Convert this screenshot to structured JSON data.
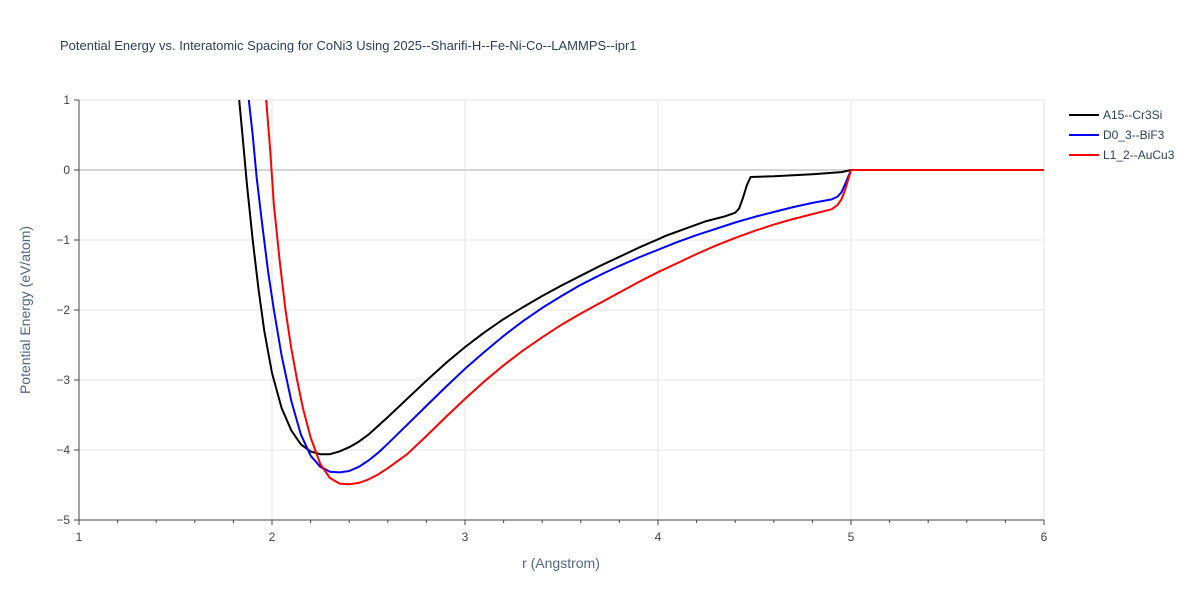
{
  "chart_data": {
    "type": "line",
    "title": "Potential Energy vs. Interatomic Spacing for CoNi3 Using 2025--Sharifi-H--Fe-Ni-Co--LAMMPS--ipr1",
    "xlabel": "r (Angstrom)",
    "ylabel": "Potential Energy (eV/atom)",
    "xlim": [
      1,
      6
    ],
    "ylim": [
      -5,
      1
    ],
    "xticks": [
      1,
      2,
      3,
      4,
      5,
      6
    ],
    "yticks": [
      1,
      0,
      -1,
      -2,
      -3,
      -4,
      -5
    ],
    "legend_position": "top-right",
    "series": [
      {
        "name": "A15--Cr3Si",
        "color": "#000000",
        "x": [
          1.83,
          1.85,
          1.87,
          1.9,
          1.93,
          1.96,
          2.0,
          2.05,
          2.1,
          2.15,
          2.2,
          2.25,
          2.3,
          2.35,
          2.4,
          2.45,
          2.5,
          2.6,
          2.7,
          2.8,
          2.9,
          3.0,
          3.1,
          3.2,
          3.3,
          3.4,
          3.5,
          3.6,
          3.7,
          3.8,
          3.9,
          4.0,
          4.04,
          4.08,
          4.15,
          4.25,
          4.35,
          4.4,
          4.42,
          4.44,
          4.46,
          4.48,
          4.6,
          4.8,
          4.95,
          5.0,
          5.5,
          6.0
        ],
        "y": [
          1.0,
          0.4,
          -0.2,
          -1.0,
          -1.7,
          -2.3,
          -2.9,
          -3.4,
          -3.72,
          -3.92,
          -4.02,
          -4.06,
          -4.06,
          -4.02,
          -3.96,
          -3.88,
          -3.78,
          -3.53,
          -3.27,
          -3.01,
          -2.76,
          -2.53,
          -2.32,
          -2.13,
          -1.96,
          -1.8,
          -1.65,
          -1.51,
          -1.37,
          -1.24,
          -1.11,
          -0.99,
          -0.94,
          -0.9,
          -0.83,
          -0.73,
          -0.66,
          -0.61,
          -0.55,
          -0.4,
          -0.22,
          -0.1,
          -0.09,
          -0.06,
          -0.03,
          0.0,
          0.0,
          0.0
        ]
      },
      {
        "name": "D0_3--BiF3",
        "color": "#0000ff",
        "x": [
          1.88,
          1.9,
          1.92,
          1.95,
          1.98,
          2.01,
          2.05,
          2.1,
          2.15,
          2.2,
          2.25,
          2.3,
          2.35,
          2.4,
          2.45,
          2.5,
          2.55,
          2.6,
          2.7,
          2.8,
          2.9,
          3.0,
          3.1,
          3.2,
          3.3,
          3.4,
          3.5,
          3.6,
          3.7,
          3.8,
          3.9,
          4.0,
          4.1,
          4.2,
          4.3,
          4.4,
          4.5,
          4.6,
          4.7,
          4.8,
          4.9,
          4.93,
          4.95,
          4.97,
          5.0,
          5.5,
          6.0
        ],
        "y": [
          1.0,
          0.5,
          -0.1,
          -0.8,
          -1.45,
          -2.0,
          -2.65,
          -3.3,
          -3.78,
          -4.08,
          -4.24,
          -4.31,
          -4.32,
          -4.3,
          -4.24,
          -4.15,
          -4.04,
          -3.91,
          -3.64,
          -3.37,
          -3.1,
          -2.84,
          -2.6,
          -2.37,
          -2.16,
          -1.97,
          -1.8,
          -1.64,
          -1.5,
          -1.37,
          -1.25,
          -1.14,
          -1.03,
          -0.93,
          -0.84,
          -0.75,
          -0.67,
          -0.6,
          -0.53,
          -0.47,
          -0.42,
          -0.38,
          -0.32,
          -0.2,
          0.0,
          0.0,
          0.0
        ]
      },
      {
        "name": "L1_2--AuCu3",
        "color": "#ff0000",
        "x": [
          1.97,
          1.99,
          2.01,
          2.04,
          2.07,
          2.1,
          2.13,
          2.16,
          2.2,
          2.25,
          2.3,
          2.35,
          2.4,
          2.45,
          2.5,
          2.55,
          2.6,
          2.7,
          2.8,
          2.9,
          3.0,
          3.1,
          3.2,
          3.3,
          3.4,
          3.5,
          3.6,
          3.7,
          3.8,
          3.9,
          4.0,
          4.1,
          4.2,
          4.3,
          4.4,
          4.5,
          4.6,
          4.7,
          4.8,
          4.9,
          4.93,
          4.95,
          4.97,
          5.0,
          5.5,
          6.0
        ],
        "y": [
          1.0,
          0.3,
          -0.5,
          -1.3,
          -2.0,
          -2.55,
          -3.0,
          -3.4,
          -3.82,
          -4.2,
          -4.4,
          -4.48,
          -4.49,
          -4.47,
          -4.42,
          -4.35,
          -4.26,
          -4.06,
          -3.8,
          -3.53,
          -3.27,
          -3.02,
          -2.79,
          -2.58,
          -2.39,
          -2.21,
          -2.05,
          -1.9,
          -1.75,
          -1.6,
          -1.46,
          -1.33,
          -1.2,
          -1.08,
          -0.97,
          -0.87,
          -0.78,
          -0.7,
          -0.63,
          -0.56,
          -0.5,
          -0.42,
          -0.28,
          0.0,
          0.0,
          0.0
        ]
      }
    ]
  }
}
